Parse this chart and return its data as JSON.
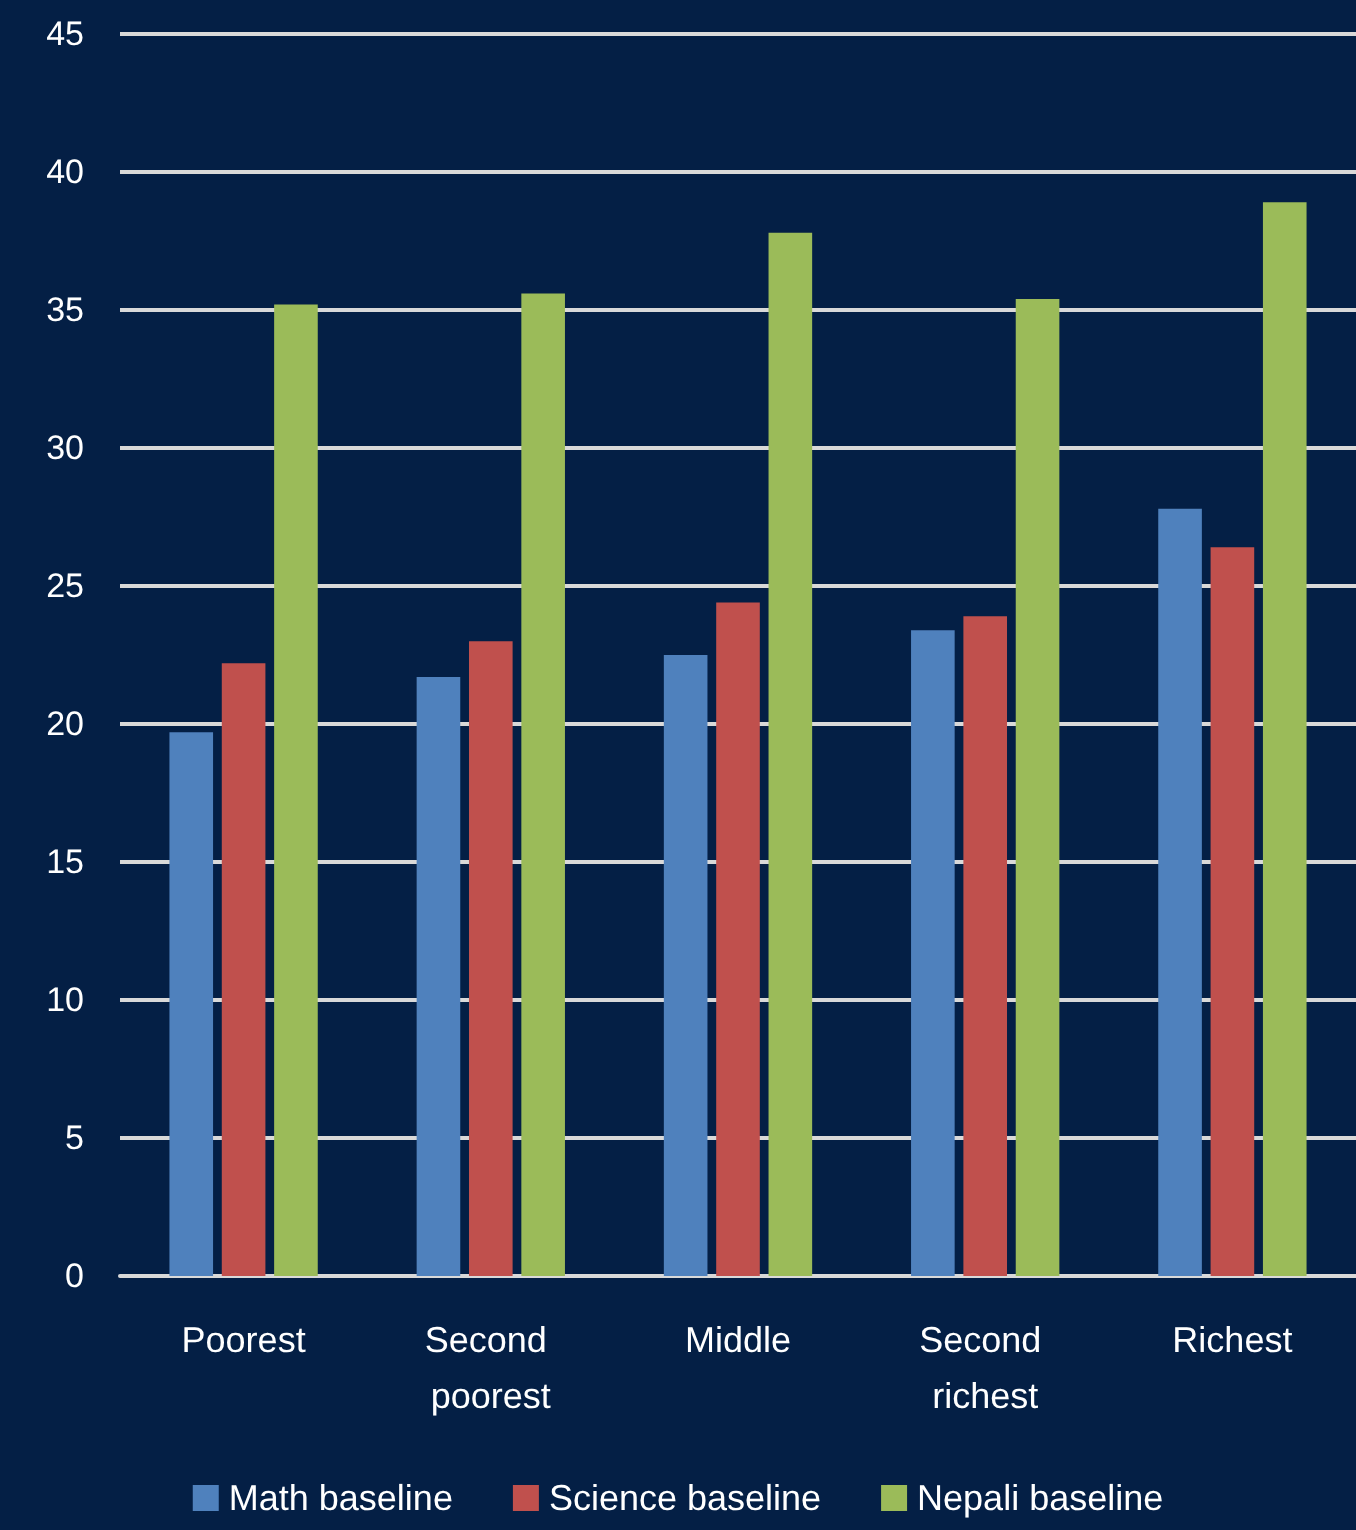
{
  "chart_data": {
    "type": "bar",
    "categories": [
      "Poorest",
      "Second poorest",
      "Middle",
      "Second richest",
      "Richest"
    ],
    "series": [
      {
        "name": "Math baseline",
        "color": "#4f81bd",
        "values": [
          19.7,
          21.7,
          22.5,
          23.4,
          27.8
        ]
      },
      {
        "name": "Science baseline",
        "color": "#c0504d",
        "values": [
          22.2,
          23.0,
          24.4,
          23.9,
          26.4
        ]
      },
      {
        "name": "Nepali baseline",
        "color": "#9bbb59",
        "values": [
          35.2,
          35.6,
          37.8,
          35.4,
          38.9
        ]
      }
    ],
    "ylim": [
      0,
      45
    ],
    "yticks": [
      0,
      5,
      10,
      15,
      20,
      25,
      30,
      35,
      40,
      45
    ],
    "grid": "y",
    "legend": "bottom"
  }
}
